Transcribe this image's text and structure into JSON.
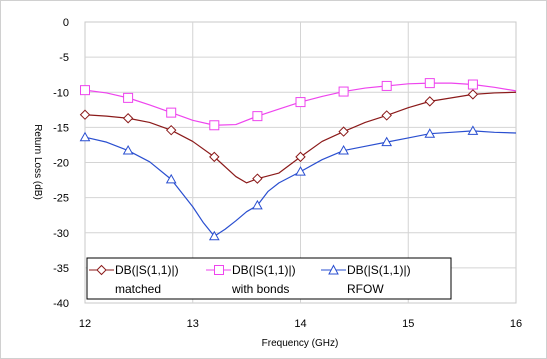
{
  "chart_data": {
    "type": "line",
    "title": "",
    "xlabel": "Frequency (GHz)",
    "ylabel": "Return Loss (dB)",
    "xlim": [
      12,
      16
    ],
    "ylim": [
      -40,
      0
    ],
    "x_ticks": [
      "12",
      "13",
      "14",
      "15",
      "16"
    ],
    "y_ticks": [
      "0",
      "-5",
      "-10",
      "-15",
      "-20",
      "-25",
      "-30",
      "-35",
      "-40"
    ],
    "grid": true,
    "legend_position": "bottom-left",
    "series": [
      {
        "name": "DB(|S(1,1)|) matched",
        "color": "#8b1a1a",
        "marker": "diamond",
        "x": [
          12.0,
          12.2,
          12.4,
          12.6,
          12.8,
          13.0,
          13.2,
          13.4,
          13.5,
          13.6,
          13.8,
          14.0,
          14.2,
          14.4,
          14.6,
          14.8,
          15.0,
          15.2,
          15.4,
          15.6,
          15.8,
          16.0
        ],
        "y": [
          -13.2,
          -13.4,
          -13.7,
          -14.3,
          -15.4,
          -17.0,
          -19.2,
          -22.0,
          -22.9,
          -22.3,
          -21.5,
          -19.2,
          -17.0,
          -15.6,
          -14.3,
          -13.3,
          -12.2,
          -11.3,
          -10.8,
          -10.3,
          -10.1,
          -10.0
        ],
        "marker_x": [
          12.0,
          12.4,
          12.8,
          13.2,
          13.6,
          14.0,
          14.4,
          14.8,
          15.2,
          15.6
        ]
      },
      {
        "name": "DB(|S(1,1)|) with bonds",
        "color": "#ee44ee",
        "marker": "square",
        "x": [
          12.0,
          12.2,
          12.4,
          12.6,
          12.8,
          13.0,
          13.2,
          13.4,
          13.6,
          13.8,
          14.0,
          14.2,
          14.4,
          14.6,
          14.8,
          15.0,
          15.2,
          15.4,
          15.6,
          15.8,
          16.0
        ],
        "y": [
          -9.7,
          -10.1,
          -10.8,
          -11.8,
          -12.9,
          -14.0,
          -14.7,
          -14.6,
          -13.4,
          -12.4,
          -11.4,
          -10.6,
          -9.9,
          -9.4,
          -9.1,
          -8.8,
          -8.7,
          -8.7,
          -8.9,
          -9.3,
          -9.8
        ],
        "marker_x": [
          12.0,
          12.4,
          12.8,
          13.2,
          13.6,
          14.0,
          14.4,
          14.8,
          15.2,
          15.6
        ]
      },
      {
        "name": "DB(|S(1,1)|) RFOW",
        "color": "#2a4fd0",
        "marker": "triangle",
        "x": [
          12.0,
          12.2,
          12.4,
          12.6,
          12.8,
          13.0,
          13.1,
          13.2,
          13.3,
          13.4,
          13.5,
          13.6,
          13.7,
          13.8,
          14.0,
          14.2,
          14.4,
          14.6,
          14.8,
          15.0,
          15.2,
          15.4,
          15.6,
          15.8,
          16.0
        ],
        "y": [
          -16.4,
          -17.1,
          -18.3,
          -19.9,
          -22.4,
          -26.3,
          -28.6,
          -30.5,
          -29.5,
          -28.3,
          -27.0,
          -26.1,
          -24.1,
          -22.9,
          -21.3,
          -19.6,
          -18.3,
          -17.7,
          -17.1,
          -16.5,
          -15.9,
          -15.7,
          -15.5,
          -15.7,
          -15.8
        ],
        "marker_x": [
          12.0,
          12.4,
          12.8,
          13.2,
          13.6,
          14.0,
          14.4,
          14.8,
          15.2,
          15.6
        ]
      }
    ],
    "legend": [
      {
        "line1": "DB(|S(1,1)|)",
        "line2": "matched"
      },
      {
        "line1": "DB(|S(1,1)|)",
        "line2": "with bonds"
      },
      {
        "line1": "DB(|S(1,1)|)",
        "line2": "RFOW"
      }
    ]
  }
}
